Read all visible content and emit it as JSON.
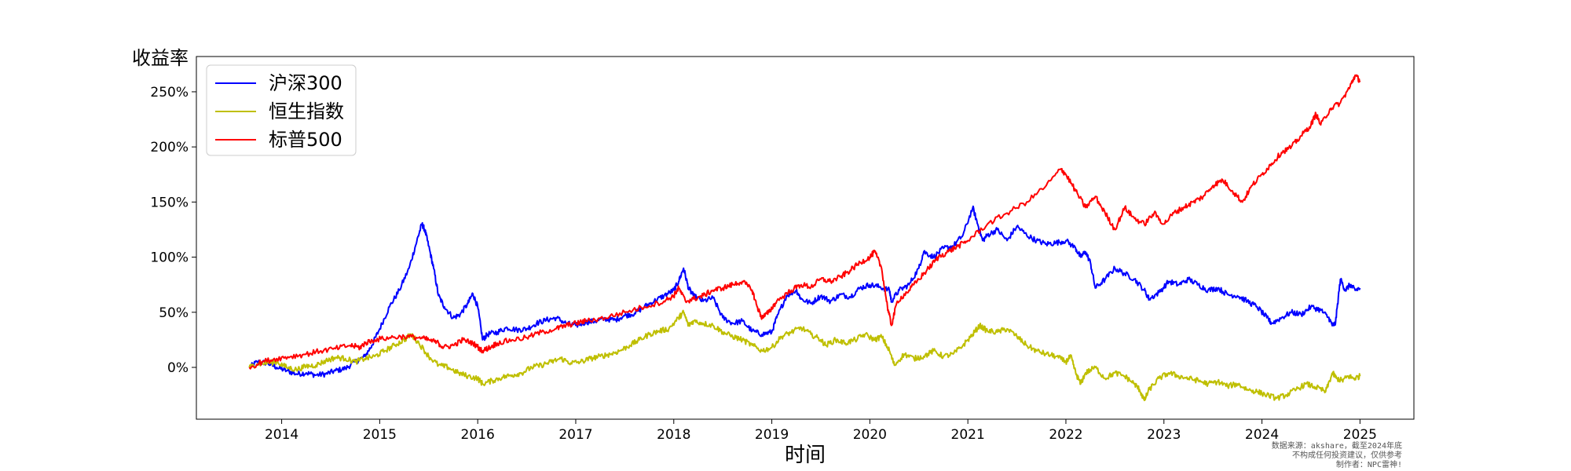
{
  "chart_data": {
    "type": "line",
    "title": "",
    "xlabel": "时间",
    "ylabel": "收益率",
    "x_ticks": [
      "2014",
      "2015",
      "2016",
      "2017",
      "2018",
      "2019",
      "2020",
      "2021",
      "2022",
      "2023",
      "2024",
      "2025"
    ],
    "y_ticks": [
      "0%",
      "50%",
      "100%",
      "150%",
      "200%",
      "250%"
    ],
    "ylim": [
      -0.47,
      2.82
    ],
    "xlim": [
      2013.13,
      2025.55
    ],
    "grid": false,
    "legend_position": "upper-left",
    "series": [
      {
        "name": "沪深300",
        "color": "#0000ff",
        "x": [
          2013.67,
          2013.75,
          2013.85,
          2013.95,
          2014.05,
          2014.15,
          2014.25,
          2014.35,
          2014.45,
          2014.55,
          2014.65,
          2014.75,
          2014.85,
          2014.92,
          2015.0,
          2015.1,
          2015.2,
          2015.3,
          2015.38,
          2015.43,
          2015.46,
          2015.5,
          2015.55,
          2015.6,
          2015.66,
          2015.75,
          2015.82,
          2015.9,
          2015.95,
          2016.0,
          2016.05,
          2016.1,
          2016.2,
          2016.3,
          2016.4,
          2016.5,
          2016.6,
          2016.7,
          2016.8,
          2016.9,
          2017.0,
          2017.1,
          2017.2,
          2017.3,
          2017.4,
          2017.5,
          2017.6,
          2017.7,
          2017.8,
          2017.9,
          2018.0,
          2018.05,
          2018.1,
          2018.15,
          2018.2,
          2018.3,
          2018.4,
          2018.5,
          2018.6,
          2018.7,
          2018.8,
          2018.9,
          2019.0,
          2019.05,
          2019.15,
          2019.25,
          2019.3,
          2019.4,
          2019.5,
          2019.6,
          2019.7,
          2019.8,
          2019.9,
          2020.0,
          2020.1,
          2020.2,
          2020.22,
          2020.3,
          2020.4,
          2020.5,
          2020.55,
          2020.65,
          2020.75,
          2020.85,
          2020.95,
          2021.05,
          2021.1,
          2021.15,
          2021.2,
          2021.3,
          2021.4,
          2021.5,
          2021.6,
          2021.7,
          2021.8,
          2021.9,
          2022.0,
          2022.1,
          2022.15,
          2022.2,
          2022.25,
          2022.3,
          2022.4,
          2022.5,
          2022.6,
          2022.7,
          2022.8,
          2022.85,
          2022.95,
          2023.05,
          2023.15,
          2023.25,
          2023.35,
          2023.45,
          2023.55,
          2023.65,
          2023.75,
          2023.85,
          2023.95,
          2024.05,
          2024.1,
          2024.2,
          2024.3,
          2024.4,
          2024.5,
          2024.6,
          2024.68,
          2024.72,
          2024.75,
          2024.8,
          2024.85,
          2024.9,
          2024.95,
          2025.0
        ],
        "values": [
          0.0,
          0.05,
          0.04,
          0.0,
          -0.03,
          -0.06,
          -0.05,
          -0.07,
          -0.06,
          -0.03,
          -0.01,
          0.05,
          0.1,
          0.2,
          0.35,
          0.55,
          0.7,
          0.9,
          1.15,
          1.3,
          1.25,
          1.1,
          0.9,
          0.65,
          0.55,
          0.45,
          0.48,
          0.58,
          0.67,
          0.55,
          0.25,
          0.3,
          0.32,
          0.36,
          0.34,
          0.35,
          0.4,
          0.43,
          0.45,
          0.4,
          0.38,
          0.41,
          0.42,
          0.44,
          0.43,
          0.47,
          0.49,
          0.55,
          0.6,
          0.65,
          0.7,
          0.78,
          0.9,
          0.72,
          0.65,
          0.6,
          0.63,
          0.45,
          0.4,
          0.42,
          0.33,
          0.3,
          0.32,
          0.45,
          0.65,
          0.7,
          0.62,
          0.58,
          0.65,
          0.6,
          0.66,
          0.64,
          0.72,
          0.75,
          0.73,
          0.7,
          0.6,
          0.7,
          0.75,
          0.9,
          1.05,
          1.0,
          1.08,
          1.1,
          1.2,
          1.45,
          1.3,
          1.15,
          1.2,
          1.25,
          1.15,
          1.28,
          1.2,
          1.15,
          1.12,
          1.13,
          1.15,
          1.08,
          1.0,
          1.05,
          0.95,
          0.72,
          0.8,
          0.9,
          0.85,
          0.8,
          0.7,
          0.62,
          0.68,
          0.78,
          0.75,
          0.8,
          0.75,
          0.7,
          0.72,
          0.66,
          0.65,
          0.6,
          0.55,
          0.45,
          0.4,
          0.45,
          0.5,
          0.48,
          0.55,
          0.52,
          0.45,
          0.38,
          0.4,
          0.8,
          0.7,
          0.75,
          0.7,
          0.72
        ]
      },
      {
        "name": "恒生指数",
        "color": "#bfbf00",
        "x": [
          2013.67,
          2013.75,
          2013.85,
          2013.95,
          2014.05,
          2014.15,
          2014.25,
          2014.35,
          2014.45,
          2014.55,
          2014.65,
          2014.75,
          2014.85,
          2014.95,
          2015.05,
          2015.15,
          2015.25,
          2015.32,
          2015.4,
          2015.5,
          2015.6,
          2015.7,
          2015.8,
          2015.9,
          2016.0,
          2016.05,
          2016.15,
          2016.25,
          2016.35,
          2016.45,
          2016.55,
          2016.65,
          2016.75,
          2016.85,
          2016.95,
          2017.05,
          2017.15,
          2017.25,
          2017.35,
          2017.45,
          2017.55,
          2017.65,
          2017.75,
          2017.85,
          2017.95,
          2018.05,
          2018.1,
          2018.15,
          2018.2,
          2018.3,
          2018.4,
          2018.5,
          2018.6,
          2018.7,
          2018.8,
          2018.9,
          2019.0,
          2019.1,
          2019.2,
          2019.3,
          2019.4,
          2019.5,
          2019.55,
          2019.65,
          2019.75,
          2019.85,
          2019.95,
          2020.05,
          2020.12,
          2020.2,
          2020.25,
          2020.35,
          2020.45,
          2020.55,
          2020.65,
          2020.75,
          2020.85,
          2020.95,
          2021.05,
          2021.12,
          2021.2,
          2021.3,
          2021.4,
          2021.5,
          2021.6,
          2021.7,
          2021.8,
          2021.9,
          2022.0,
          2022.05,
          2022.1,
          2022.15,
          2022.2,
          2022.3,
          2022.4,
          2022.5,
          2022.6,
          2022.7,
          2022.75,
          2022.8,
          2022.85,
          2022.95,
          2023.05,
          2023.15,
          2023.25,
          2023.35,
          2023.45,
          2023.55,
          2023.65,
          2023.75,
          2023.85,
          2023.95,
          2024.05,
          2024.15,
          2024.25,
          2024.35,
          2024.45,
          2024.55,
          2024.65,
          2024.72,
          2024.76,
          2024.82,
          2024.88,
          2024.94,
          2025.0
        ],
        "values": [
          0.0,
          0.03,
          0.04,
          0.05,
          0.0,
          -0.02,
          0.01,
          0.02,
          0.06,
          0.09,
          0.08,
          0.05,
          0.08,
          0.1,
          0.15,
          0.2,
          0.25,
          0.3,
          0.22,
          0.1,
          0.02,
          0.0,
          -0.05,
          -0.08,
          -0.1,
          -0.15,
          -0.12,
          -0.09,
          -0.07,
          -0.05,
          0.0,
          0.02,
          0.05,
          0.08,
          0.04,
          0.05,
          0.08,
          0.1,
          0.12,
          0.15,
          0.2,
          0.25,
          0.3,
          0.33,
          0.35,
          0.45,
          0.5,
          0.38,
          0.42,
          0.4,
          0.38,
          0.32,
          0.28,
          0.25,
          0.2,
          0.15,
          0.18,
          0.28,
          0.32,
          0.36,
          0.3,
          0.25,
          0.2,
          0.25,
          0.22,
          0.25,
          0.3,
          0.25,
          0.28,
          0.15,
          0.02,
          0.12,
          0.08,
          0.1,
          0.15,
          0.1,
          0.12,
          0.2,
          0.3,
          0.38,
          0.33,
          0.32,
          0.35,
          0.28,
          0.2,
          0.15,
          0.12,
          0.1,
          0.05,
          0.1,
          -0.05,
          -0.15,
          -0.05,
          0.0,
          -0.1,
          -0.05,
          -0.08,
          -0.15,
          -0.2,
          -0.3,
          -0.2,
          -0.1,
          -0.05,
          -0.08,
          -0.1,
          -0.12,
          -0.15,
          -0.13,
          -0.17,
          -0.15,
          -0.2,
          -0.22,
          -0.25,
          -0.28,
          -0.25,
          -0.2,
          -0.15,
          -0.18,
          -0.22,
          -0.05,
          -0.1,
          -0.12,
          -0.08,
          -0.1,
          -0.08
        ]
      },
      {
        "name": "标普500",
        "color": "#ff0000",
        "x": [
          2013.67,
          2013.8,
          2013.95,
          2014.1,
          2014.25,
          2014.4,
          2014.55,
          2014.7,
          2014.8,
          2014.85,
          2014.95,
          2015.1,
          2015.25,
          2015.4,
          2015.5,
          2015.6,
          2015.65,
          2015.75,
          2015.85,
          2015.95,
          2016.05,
          2016.12,
          2016.2,
          2016.35,
          2016.5,
          2016.65,
          2016.8,
          2016.9,
          2017.0,
          2017.1,
          2017.3,
          2017.5,
          2017.7,
          2017.9,
          2018.0,
          2018.05,
          2018.12,
          2018.2,
          2018.3,
          2018.4,
          2018.5,
          2018.6,
          2018.7,
          2018.8,
          2018.85,
          2018.9,
          2018.97,
          2019.05,
          2019.2,
          2019.3,
          2019.4,
          2019.5,
          2019.6,
          2019.7,
          2019.8,
          2019.9,
          2020.0,
          2020.05,
          2020.12,
          2020.18,
          2020.22,
          2020.28,
          2020.4,
          2020.5,
          2020.6,
          2020.7,
          2020.8,
          2020.9,
          2021.0,
          2021.2,
          2021.4,
          2021.6,
          2021.8,
          2021.95,
          2022.0,
          2022.1,
          2022.2,
          2022.3,
          2022.4,
          2022.5,
          2022.6,
          2022.7,
          2022.8,
          2022.9,
          2023.0,
          2023.1,
          2023.2,
          2023.3,
          2023.4,
          2023.5,
          2023.6,
          2023.7,
          2023.8,
          2023.9,
          2024.0,
          2024.1,
          2024.2,
          2024.3,
          2024.4,
          2024.5,
          2024.55,
          2024.6,
          2024.7,
          2024.8,
          2024.9,
          2024.95,
          2025.0
        ],
        "values": [
          0.0,
          0.05,
          0.08,
          0.1,
          0.12,
          0.15,
          0.17,
          0.2,
          0.18,
          0.22,
          0.25,
          0.27,
          0.28,
          0.27,
          0.25,
          0.22,
          0.18,
          0.2,
          0.25,
          0.22,
          0.15,
          0.18,
          0.22,
          0.25,
          0.27,
          0.32,
          0.35,
          0.38,
          0.4,
          0.42,
          0.45,
          0.5,
          0.55,
          0.6,
          0.65,
          0.72,
          0.6,
          0.62,
          0.65,
          0.7,
          0.72,
          0.75,
          0.78,
          0.7,
          0.55,
          0.45,
          0.5,
          0.6,
          0.7,
          0.75,
          0.73,
          0.8,
          0.78,
          0.82,
          0.88,
          0.95,
          1.0,
          1.05,
          0.9,
          0.55,
          0.38,
          0.6,
          0.7,
          0.8,
          0.9,
          1.0,
          1.05,
          1.1,
          1.15,
          1.3,
          1.4,
          1.5,
          1.65,
          1.8,
          1.75,
          1.6,
          1.45,
          1.55,
          1.4,
          1.25,
          1.45,
          1.35,
          1.3,
          1.4,
          1.3,
          1.4,
          1.45,
          1.5,
          1.55,
          1.65,
          1.7,
          1.6,
          1.5,
          1.65,
          1.75,
          1.85,
          1.95,
          2.0,
          2.1,
          2.2,
          2.3,
          2.2,
          2.35,
          2.4,
          2.55,
          2.65,
          2.6
        ]
      }
    ]
  },
  "footer": {
    "line1": "数据来源：akshare，截至2024年底",
    "line2": "不构成任何投资建议，仅供参考",
    "line3": "制作者：NPC雷神!"
  }
}
